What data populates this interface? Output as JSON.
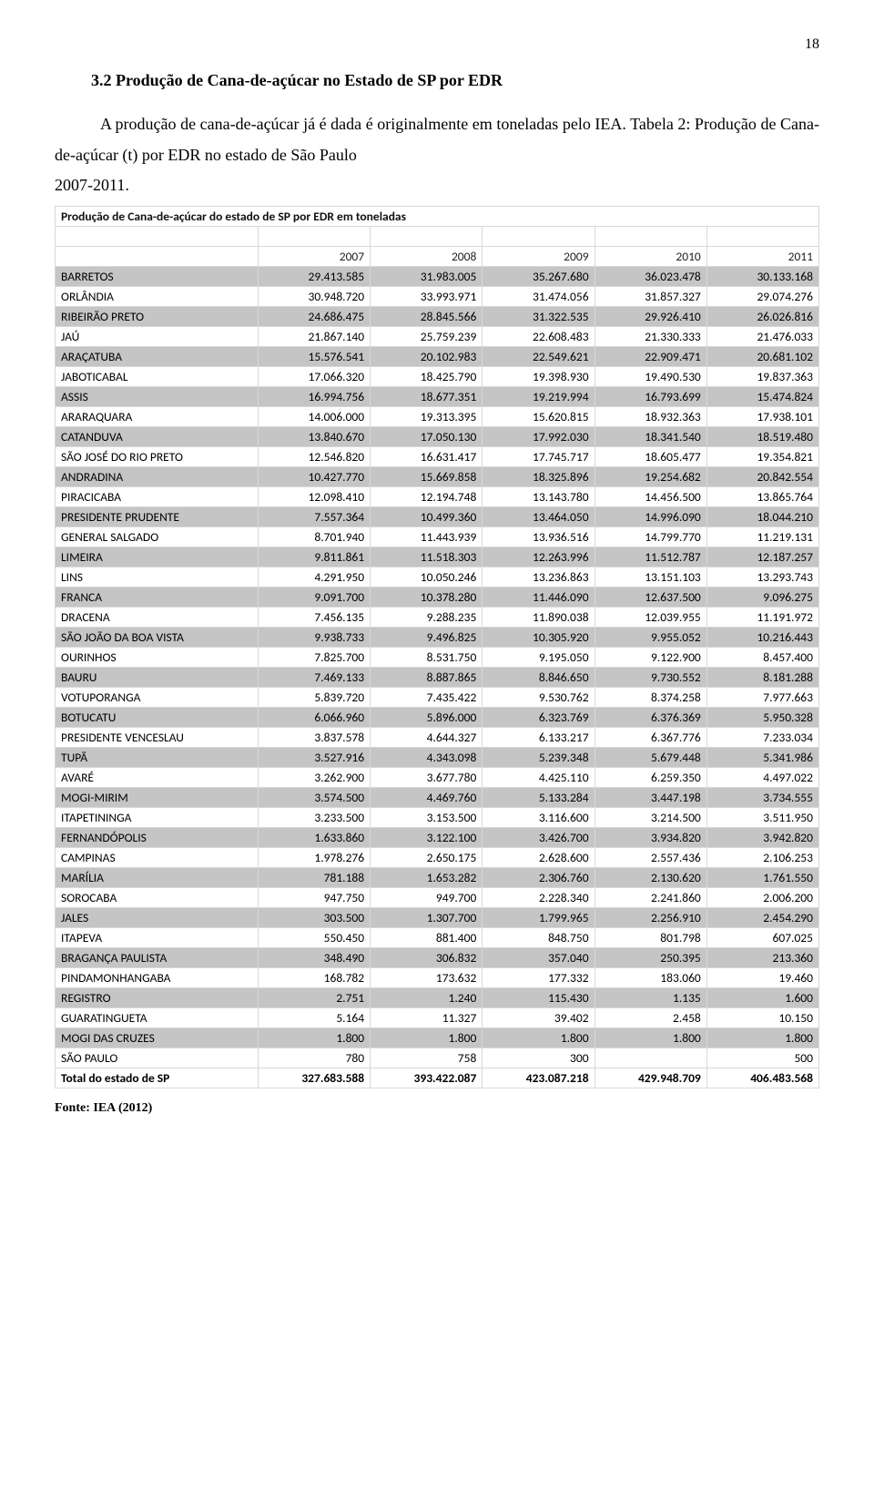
{
  "page_number": "18",
  "heading": "3.2 Produção de Cana-de-açúcar no Estado de SP por EDR",
  "paragraph": "A produção de cana-de-açúcar já é dada é originalmente em toneladas pelo IEA. Tabela 2: Produção de Cana-de-açúcar (t) por EDR no estado de São Paulo",
  "year_line": "2007-2011.",
  "table": {
    "title": "Produção de Cana-de-açúcar do estado de SP por EDR em toneladas",
    "years": [
      "2007",
      "2008",
      "2009",
      "2010",
      "2011"
    ],
    "rows": [
      {
        "name": "BARRETOS",
        "v": [
          "29.413.585",
          "31.983.005",
          "35.267.680",
          "36.023.478",
          "30.133.168"
        ]
      },
      {
        "name": "ORLÂNDIA",
        "v": [
          "30.948.720",
          "33.993.971",
          "31.474.056",
          "31.857.327",
          "29.074.276"
        ]
      },
      {
        "name": "RIBEIRÃO PRETO",
        "v": [
          "24.686.475",
          "28.845.566",
          "31.322.535",
          "29.926.410",
          "26.026.816"
        ]
      },
      {
        "name": "JAÚ",
        "v": [
          "21.867.140",
          "25.759.239",
          "22.608.483",
          "21.330.333",
          "21.476.033"
        ]
      },
      {
        "name": "ARAÇATUBA",
        "v": [
          "15.576.541",
          "20.102.983",
          "22.549.621",
          "22.909.471",
          "20.681.102"
        ]
      },
      {
        "name": "JABOTICABAL",
        "v": [
          "17.066.320",
          "18.425.790",
          "19.398.930",
          "19.490.530",
          "19.837.363"
        ]
      },
      {
        "name": "ASSIS",
        "v": [
          "16.994.756",
          "18.677.351",
          "19.219.994",
          "16.793.699",
          "15.474.824"
        ]
      },
      {
        "name": "ARARAQUARA",
        "v": [
          "14.006.000",
          "19.313.395",
          "15.620.815",
          "18.932.363",
          "17.938.101"
        ]
      },
      {
        "name": "CATANDUVA",
        "v": [
          "13.840.670",
          "17.050.130",
          "17.992.030",
          "18.341.540",
          "18.519.480"
        ]
      },
      {
        "name": "SÃO JOSÉ DO RIO PRETO",
        "v": [
          "12.546.820",
          "16.631.417",
          "17.745.717",
          "18.605.477",
          "19.354.821"
        ]
      },
      {
        "name": "ANDRADINA",
        "v": [
          "10.427.770",
          "15.669.858",
          "18.325.896",
          "19.254.682",
          "20.842.554"
        ]
      },
      {
        "name": "PIRACICABA",
        "v": [
          "12.098.410",
          "12.194.748",
          "13.143.780",
          "14.456.500",
          "13.865.764"
        ]
      },
      {
        "name": "PRESIDENTE PRUDENTE",
        "v": [
          "7.557.364",
          "10.499.360",
          "13.464.050",
          "14.996.090",
          "18.044.210"
        ]
      },
      {
        "name": "GENERAL SALGADO",
        "v": [
          "8.701.940",
          "11.443.939",
          "13.936.516",
          "14.799.770",
          "11.219.131"
        ]
      },
      {
        "name": "LIMEIRA",
        "v": [
          "9.811.861",
          "11.518.303",
          "12.263.996",
          "11.512.787",
          "12.187.257"
        ]
      },
      {
        "name": "LINS",
        "v": [
          "4.291.950",
          "10.050.246",
          "13.236.863",
          "13.151.103",
          "13.293.743"
        ]
      },
      {
        "name": "FRANCA",
        "v": [
          "9.091.700",
          "10.378.280",
          "11.446.090",
          "12.637.500",
          "9.096.275"
        ]
      },
      {
        "name": "DRACENA",
        "v": [
          "7.456.135",
          "9.288.235",
          "11.890.038",
          "12.039.955",
          "11.191.972"
        ]
      },
      {
        "name": "SÃO JOÃO DA BOA VISTA",
        "v": [
          "9.938.733",
          "9.496.825",
          "10.305.920",
          "9.955.052",
          "10.216.443"
        ]
      },
      {
        "name": "OURINHOS",
        "v": [
          "7.825.700",
          "8.531.750",
          "9.195.050",
          "9.122.900",
          "8.457.400"
        ]
      },
      {
        "name": "BAURU",
        "v": [
          "7.469.133",
          "8.887.865",
          "8.846.650",
          "9.730.552",
          "8.181.288"
        ]
      },
      {
        "name": "VOTUPORANGA",
        "v": [
          "5.839.720",
          "7.435.422",
          "9.530.762",
          "8.374.258",
          "7.977.663"
        ]
      },
      {
        "name": "BOTUCATU",
        "v": [
          "6.066.960",
          "5.896.000",
          "6.323.769",
          "6.376.369",
          "5.950.328"
        ]
      },
      {
        "name": "PRESIDENTE VENCESLAU",
        "v": [
          "3.837.578",
          "4.644.327",
          "6.133.217",
          "6.367.776",
          "7.233.034"
        ]
      },
      {
        "name": "TUPÃ",
        "v": [
          "3.527.916",
          "4.343.098",
          "5.239.348",
          "5.679.448",
          "5.341.986"
        ]
      },
      {
        "name": "AVARÉ",
        "v": [
          "3.262.900",
          "3.677.780",
          "4.425.110",
          "6.259.350",
          "4.497.022"
        ]
      },
      {
        "name": "MOGI-MIRIM",
        "v": [
          "3.574.500",
          "4.469.760",
          "5.133.284",
          "3.447.198",
          "3.734.555"
        ]
      },
      {
        "name": "ITAPETININGA",
        "v": [
          "3.233.500",
          "3.153.500",
          "3.116.600",
          "3.214.500",
          "3.511.950"
        ]
      },
      {
        "name": "FERNANDÓPOLIS",
        "v": [
          "1.633.860",
          "3.122.100",
          "3.426.700",
          "3.934.820",
          "3.942.820"
        ]
      },
      {
        "name": "CAMPINAS",
        "v": [
          "1.978.276",
          "2.650.175",
          "2.628.600",
          "2.557.436",
          "2.106.253"
        ]
      },
      {
        "name": "MARÍLIA",
        "v": [
          "781.188",
          "1.653.282",
          "2.306.760",
          "2.130.620",
          "1.761.550"
        ]
      },
      {
        "name": "SOROCABA",
        "v": [
          "947.750",
          "949.700",
          "2.228.340",
          "2.241.860",
          "2.006.200"
        ]
      },
      {
        "name": "JALES",
        "v": [
          "303.500",
          "1.307.700",
          "1.799.965",
          "2.256.910",
          "2.454.290"
        ]
      },
      {
        "name": "ITAPEVA",
        "v": [
          "550.450",
          "881.400",
          "848.750",
          "801.798",
          "607.025"
        ]
      },
      {
        "name": "BRAGANÇA PAULISTA",
        "v": [
          "348.490",
          "306.832",
          "357.040",
          "250.395",
          "213.360"
        ]
      },
      {
        "name": "PINDAMONHANGABA",
        "v": [
          "168.782",
          "173.632",
          "177.332",
          "183.060",
          "19.460"
        ]
      },
      {
        "name": "REGISTRO",
        "v": [
          "2.751",
          "1.240",
          "115.430",
          "1.135",
          "1.600"
        ]
      },
      {
        "name": "GUARATINGUETA",
        "v": [
          "5.164",
          "11.327",
          "39.402",
          "2.458",
          "10.150"
        ]
      },
      {
        "name": "MOGI DAS CRUZES",
        "v": [
          "1.800",
          "1.800",
          "1.800",
          "1.800",
          "1.800"
        ]
      },
      {
        "name": "SÃO PAULO",
        "v": [
          "780",
          "758",
          "300",
          "",
          "500"
        ]
      }
    ],
    "total": {
      "name": "Total do estado de SP",
      "v": [
        "327.683.588",
        "393.422.087",
        "423.087.218",
        "429.948.709",
        "406.483.568"
      ]
    }
  },
  "source": "Fonte: IEA (2012)",
  "style": {
    "band_bg": "#c5c5c5",
    "border": "#d8d8d8",
    "body_font": "Times New Roman",
    "table_font": "Calibri"
  }
}
